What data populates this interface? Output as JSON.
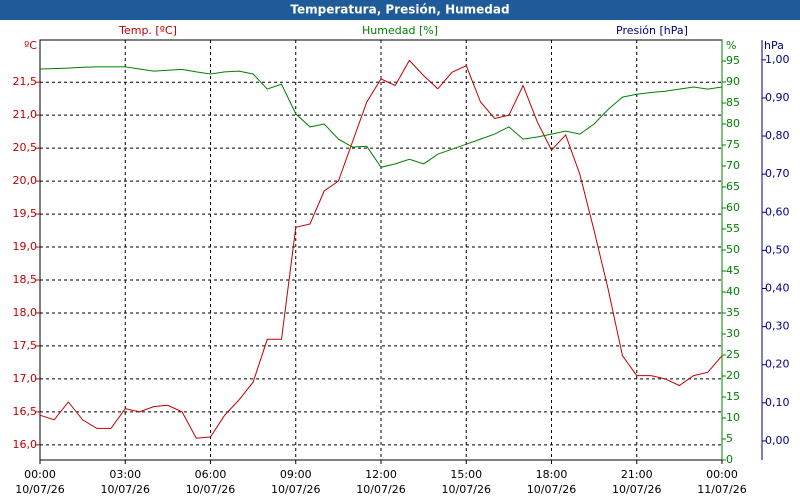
{
  "chart_data": {
    "type": "line",
    "title": "Temperatura, Presión, Humedad",
    "x": [
      0,
      0.5,
      1,
      1.5,
      2,
      2.5,
      3,
      3.5,
      4,
      4.5,
      5,
      5.5,
      6,
      6.5,
      7,
      7.5,
      8,
      8.5,
      9,
      9.5,
      10,
      10.5,
      11,
      11.5,
      12,
      12.5,
      13,
      13.5,
      14,
      14.5,
      15,
      15.5,
      16,
      16.5,
      17,
      17.5,
      18,
      18.5,
      19,
      19.5,
      20,
      20.5,
      21,
      21.5,
      22,
      22.5,
      23,
      23.5,
      24
    ],
    "xlim": [
      0,
      24
    ],
    "xticks": [
      {
        "value": 0,
        "label": "00:00"
      },
      {
        "value": 3,
        "label": "03:00"
      },
      {
        "value": 6,
        "label": "06:00"
      },
      {
        "value": 9,
        "label": "09:00"
      },
      {
        "value": 12,
        "label": "12:00"
      },
      {
        "value": 15,
        "label": "15:00"
      },
      {
        "value": 18,
        "label": "18:00"
      },
      {
        "value": 21,
        "label": "21:00"
      },
      {
        "value": 24,
        "label": "00:00"
      }
    ],
    "xtick_dates": [
      "10/07/26",
      "10/07/26",
      "10/07/26",
      "10/07/26",
      "10/07/26",
      "10/07/26",
      "10/07/26",
      "10/07/26",
      "11/07/26"
    ],
    "y_unit": "ºC",
    "ylim": [
      15.77,
      22.14
    ],
    "yticks": [
      {
        "value": 16.0,
        "label": "16,0"
      },
      {
        "value": 16.5,
        "label": "16,5"
      },
      {
        "value": 17.0,
        "label": "17,0"
      },
      {
        "value": 17.5,
        "label": "17,5"
      },
      {
        "value": 18.0,
        "label": "18,0"
      },
      {
        "value": 18.5,
        "label": "18,5"
      },
      {
        "value": 19.0,
        "label": "19,0"
      },
      {
        "value": 19.5,
        "label": "19,5"
      },
      {
        "value": 20.0,
        "label": "20,0"
      },
      {
        "value": 20.5,
        "label": "20,5"
      },
      {
        "value": 21.0,
        "label": "21,0"
      },
      {
        "value": 21.5,
        "label": "21,5"
      }
    ],
    "y2_unit": "%",
    "y2lim": [
      0,
      100
    ],
    "y2ticks": [
      0,
      5,
      10,
      15,
      20,
      25,
      30,
      35,
      40,
      45,
      50,
      55,
      60,
      65,
      70,
      75,
      80,
      85,
      90,
      95
    ],
    "y3_name": "Presión [hPa]",
    "y3_color": "#000080",
    "y3_unit": "hPa",
    "y3lim": [
      -0.05,
      1.052
    ],
    "y3ticks": [
      {
        "value": 0,
        "label": "0,00"
      },
      {
        "value": 0.1,
        "label": "0,10"
      },
      {
        "value": 0.2,
        "label": "0,20"
      },
      {
        "value": 0.3,
        "label": "0,30"
      },
      {
        "value": 0.4,
        "label": "0,40"
      },
      {
        "value": 0.5,
        "label": "0,50"
      },
      {
        "value": 0.6,
        "label": "0,60"
      },
      {
        "value": 0.7,
        "label": "0,70"
      },
      {
        "value": 0.8,
        "label": "0,80"
      },
      {
        "value": 0.9,
        "label": "0,90"
      },
      {
        "value": 1.0,
        "label": "1,00"
      }
    ],
    "grid": true,
    "series": [
      {
        "name": "Temp. [ºC]",
        "color": "#c00000",
        "values": [
          16.45,
          16.38,
          16.65,
          16.38,
          16.25,
          16.25,
          16.55,
          16.5,
          16.58,
          16.6,
          16.5,
          16.1,
          16.12,
          16.45,
          16.68,
          16.95,
          17.6,
          17.6,
          19.3,
          19.35,
          19.85,
          20.0,
          20.6,
          21.2,
          21.55,
          21.45,
          21.83,
          21.6,
          21.4,
          21.65,
          21.75,
          21.2,
          20.95,
          21.0,
          21.45,
          20.9,
          20.47,
          20.7,
          20.1,
          19.25,
          18.35,
          17.35,
          17.05,
          17.05,
          17.0,
          16.9,
          17.05,
          17.1,
          17.35
        ]
      },
      {
        "name": "Humedad [%]",
        "color": "#008000",
        "axis": "y2",
        "values": [
          93.1,
          93.2,
          93.3,
          93.5,
          93.6,
          93.6,
          93.6,
          93.1,
          92.6,
          92.8,
          93.0,
          92.4,
          91.9,
          92.4,
          92.6,
          91.9,
          88.3,
          89.5,
          82.4,
          79.3,
          80.0,
          76.4,
          74.5,
          74.7,
          69.7,
          70.5,
          71.6,
          70.5,
          72.8,
          74.0,
          75.2,
          76.4,
          77.6,
          79.3,
          76.4,
          76.9,
          77.6,
          78.3,
          77.6,
          80.0,
          83.5,
          86.4,
          87.1,
          87.5,
          87.8,
          88.3,
          88.8,
          88.3,
          88.8
        ]
      }
    ]
  }
}
